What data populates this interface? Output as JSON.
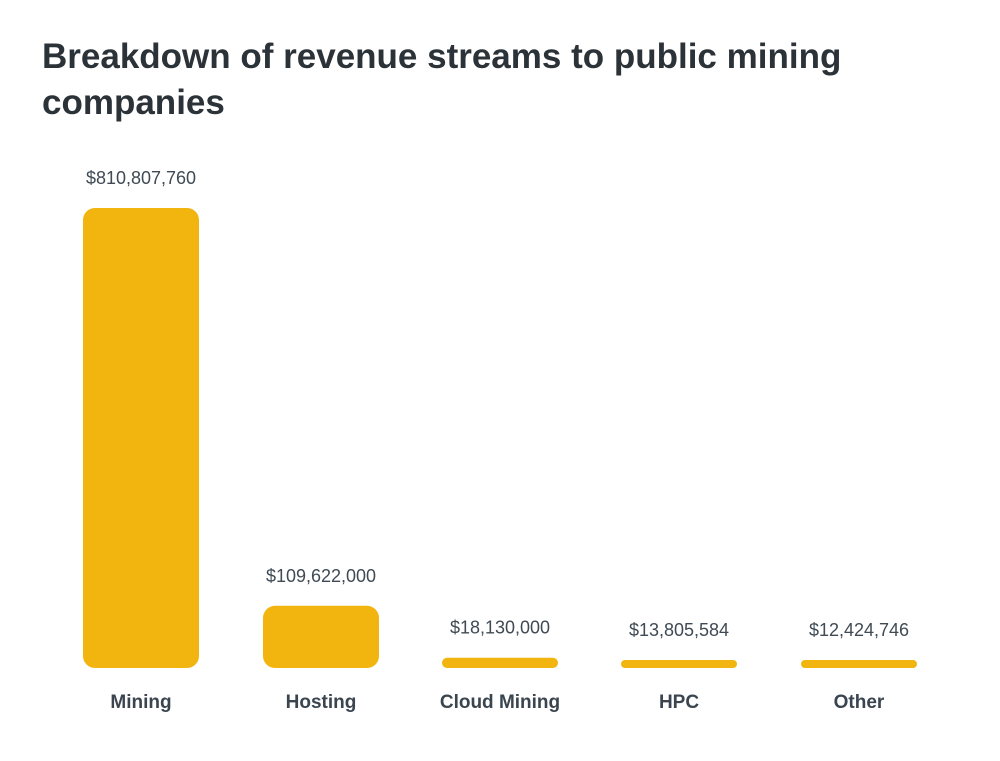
{
  "chart_data": {
    "type": "bar",
    "title": "Breakdown of revenue streams to public mining companies",
    "categories": [
      "Mining",
      "Hosting",
      "Cloud Mining",
      "HPC",
      "Other"
    ],
    "values": [
      810807760,
      109622000,
      18130000,
      13805584,
      12424746
    ],
    "value_labels": [
      "$810,807,760",
      "$109,622,000",
      "$18,130,000",
      "$13,805,584",
      "$12,424,746"
    ],
    "xlabel": "",
    "ylabel": "",
    "ylim": [
      0,
      810807760
    ],
    "grid": false,
    "bar_color": "#F2B50F"
  }
}
